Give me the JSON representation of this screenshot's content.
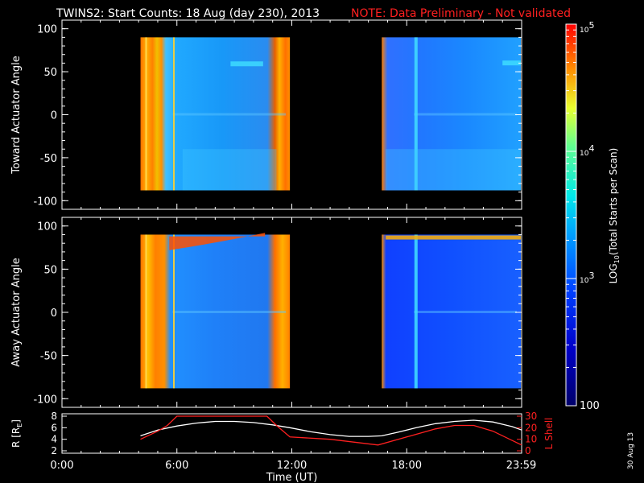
{
  "header": {
    "title": "TWINS2: Start Counts: 18 Aug (day 230), 2013",
    "note": "NOTE: Data Preliminary - Not validated"
  },
  "stamp": "30 Aug 13",
  "colors": {
    "background": "#000000",
    "note": "#ff2020",
    "frame": "#ffffff",
    "lshell": "#ff2020",
    "r_line": "#ffffff"
  },
  "chart_data": [
    {
      "type": "heatmap",
      "ylabel": "Toward Actuator Angle",
      "ylim": [
        -110,
        110
      ],
      "yticks": [
        "100",
        "50",
        "0",
        "-50",
        "-100"
      ],
      "xlim_hours": [
        0,
        24
      ],
      "data_ranges_hours": [
        [
          4.1,
          11.9
        ],
        [
          16.7,
          24
        ]
      ],
      "angle_range": [
        -88,
        90
      ],
      "shares_colorbar": true
    },
    {
      "type": "heatmap",
      "ylabel": "Away Actuator Angle",
      "ylim": [
        -110,
        110
      ],
      "yticks": [
        "100",
        "50",
        "0",
        "-50",
        "-100"
      ],
      "xlim_hours": [
        0,
        24
      ],
      "data_ranges_hours": [
        [
          4.1,
          11.9
        ],
        [
          16.7,
          24
        ]
      ],
      "angle_range": [
        -88,
        90
      ],
      "shares_colorbar": true
    },
    {
      "type": "line",
      "ylabel": "R [R",
      "ylabel_sub": "E",
      "ylabel_end": "]",
      "ylim": [
        2,
        8
      ],
      "yticks": [
        "8",
        "6",
        "4",
        "2"
      ],
      "y2label": "L Shell",
      "y2lim": [
        0,
        30
      ],
      "y2ticks": [
        "30",
        "20",
        "10",
        "0"
      ],
      "xlabel": "Time (UT)",
      "xticks": [
        "0:00",
        "6:00",
        "12:00",
        "18:00",
        "23:59"
      ],
      "xtick_hours": [
        0,
        6,
        12,
        18,
        23.98
      ],
      "series": [
        {
          "axis": "left",
          "x": [
            4.1,
            5,
            6,
            7,
            8,
            9,
            10,
            11,
            11.9,
            13,
            14,
            15,
            16,
            16.7,
            17.5,
            18.5,
            19.5,
            20.5,
            21.5,
            22.5,
            23.5,
            24
          ],
          "y": [
            4.6,
            5.6,
            6.3,
            6.8,
            7.1,
            7.1,
            6.9,
            6.5,
            6.0,
            5.3,
            4.8,
            4.5,
            4.5,
            4.6,
            5.2,
            6.0,
            6.7,
            7.1,
            7.3,
            7.0,
            6.2,
            5.6
          ]
        },
        {
          "axis": "right",
          "x": [
            4.1,
            5,
            5.5,
            6.0,
            10.7,
            11.2,
            11.9,
            14,
            16.5,
            18,
            19.5,
            20.5,
            21.5,
            22.5,
            23.5,
            24
          ],
          "y": [
            10,
            17,
            22,
            30,
            30,
            22,
            12,
            10,
            5,
            12,
            19,
            22,
            22,
            17,
            9,
            5
          ]
        }
      ]
    }
  ],
  "colorbar": {
    "label": "LOG",
    "label_sub": "10",
    "label_end": "(Total Starts per Scan)",
    "ticks": [
      {
        "text": "10",
        "exp": "5",
        "value": 100000
      },
      {
        "text": "10",
        "exp": "4",
        "value": 10000
      },
      {
        "text": "10",
        "exp": "3",
        "value": 1000
      },
      {
        "text": "100",
        "exp": "",
        "value": 100
      }
    ],
    "range": [
      100,
      100000
    ]
  }
}
